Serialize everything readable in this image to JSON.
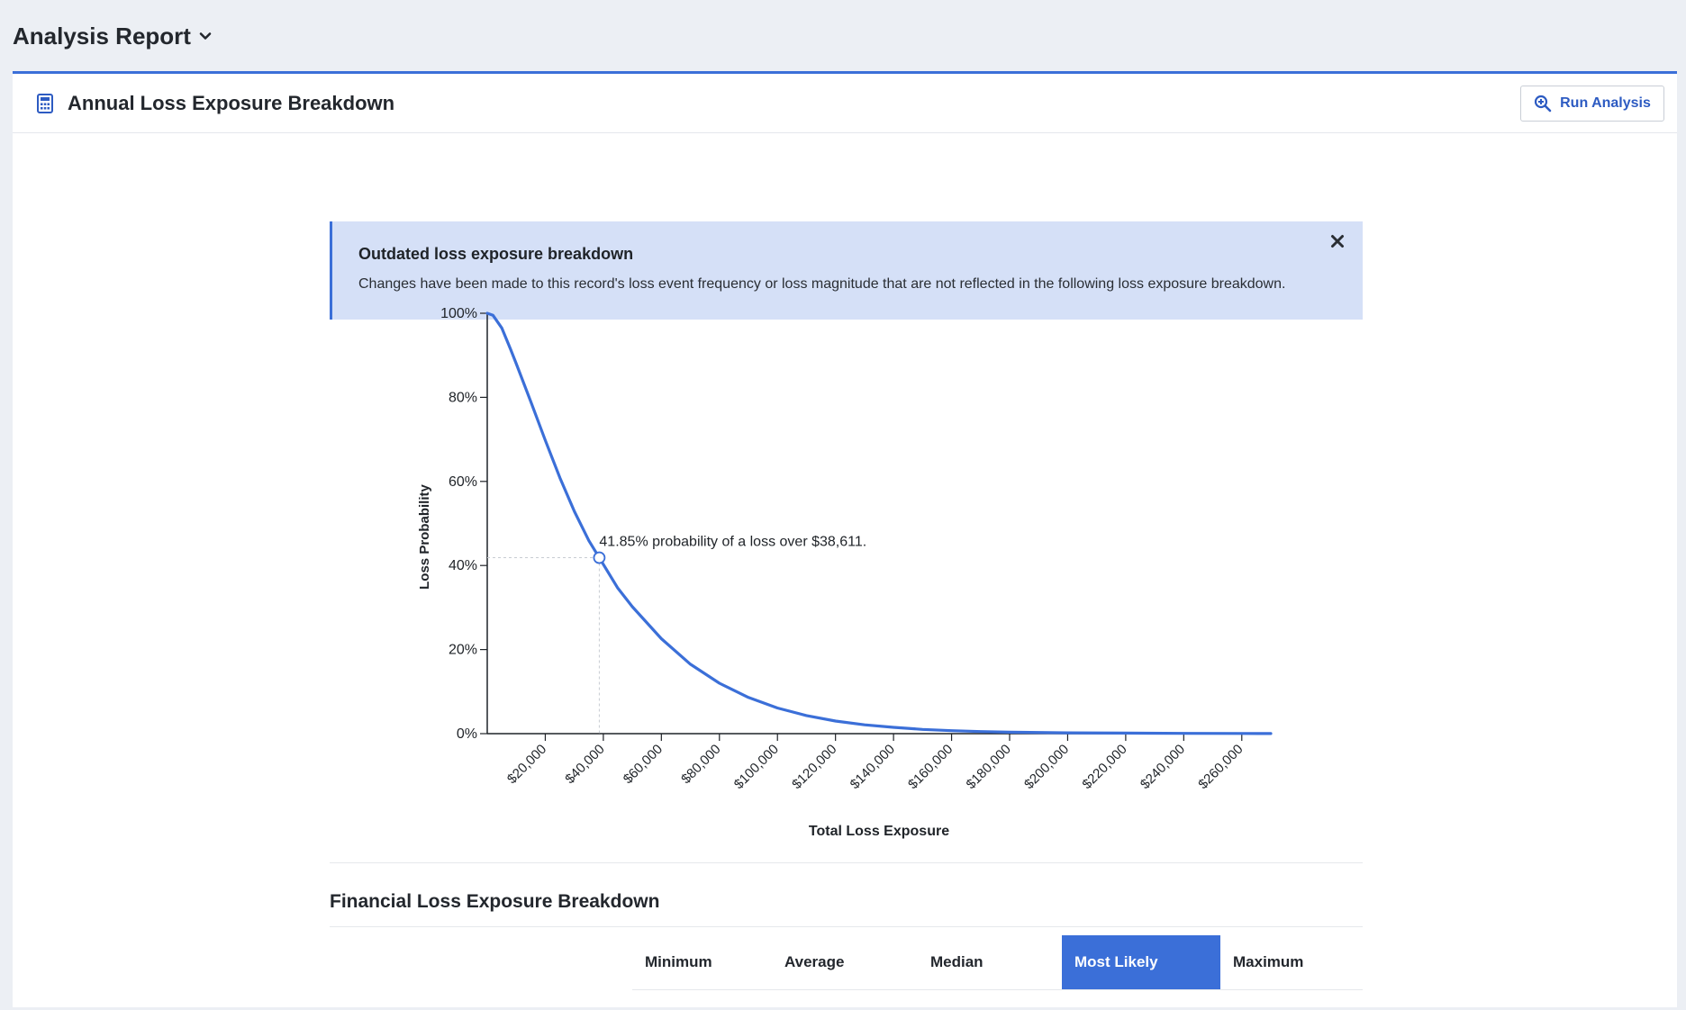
{
  "topbar": {
    "title": "Analysis Report"
  },
  "card": {
    "title": "Annual Loss Exposure Breakdown",
    "run_button_label": "Run Analysis"
  },
  "alert": {
    "title": "Outdated loss exposure breakdown",
    "text": "Changes have been made to this record's loss event frequency or loss magnitude that are not reflected in the following loss exposure breakdown."
  },
  "colors": {
    "accent": "#3b6fd8",
    "alert_bg": "#d5e0f7",
    "curve": "#3b6fd8"
  },
  "chart_data": {
    "type": "line",
    "xlabel": "Total Loss Exposure",
    "ylabel": "Loss Probability",
    "xlim": [
      0,
      270000
    ],
    "ylim": [
      0,
      100
    ],
    "x_ticks": [
      20000,
      40000,
      60000,
      80000,
      100000,
      120000,
      140000,
      160000,
      180000,
      200000,
      220000,
      240000,
      260000
    ],
    "x_tick_labels": [
      "$20,000",
      "$40,000",
      "$60,000",
      "$80,000",
      "$100,000",
      "$120,000",
      "$140,000",
      "$160,000",
      "$180,000",
      "$200,000",
      "$220,000",
      "$240,000",
      "$260,000"
    ],
    "y_ticks": [
      0,
      20,
      40,
      60,
      80,
      100
    ],
    "y_tick_labels": [
      "0%",
      "20%",
      "40%",
      "60%",
      "80%",
      "100%"
    ],
    "series": [
      {
        "x": [
          0,
          2000,
          5000,
          8000,
          10000,
          15000,
          20000,
          25000,
          30000,
          35000,
          38611,
          45000,
          50000,
          60000,
          70000,
          80000,
          90000,
          100000,
          110000,
          120000,
          130000,
          140000,
          150000,
          160000,
          170000,
          180000,
          200000,
          220000,
          240000,
          260000,
          270000
        ],
        "y": [
          100,
          99.5,
          96.5,
          91.5,
          88.0,
          79.0,
          69.8,
          60.9,
          52.9,
          45.9,
          41.85,
          34.6,
          30.2,
          22.6,
          16.5,
          12.0,
          8.6,
          6.1,
          4.3,
          3.0,
          2.1,
          1.5,
          1.0,
          0.7,
          0.5,
          0.35,
          0.2,
          0.12,
          0.07,
          0.04,
          0.03
        ]
      }
    ],
    "annotation": {
      "x": 38611,
      "y": 41.85,
      "text": "41.85% probability of a loss over $38,611."
    },
    "grid": false,
    "legend": "none"
  },
  "breakdown": {
    "title": "Financial Loss Exposure Breakdown",
    "tabs": [
      {
        "label": "Minimum",
        "active": false
      },
      {
        "label": "Average",
        "active": false
      },
      {
        "label": "Median",
        "active": false
      },
      {
        "label": "Most Likely",
        "active": true
      },
      {
        "label": "Maximum",
        "active": false
      }
    ]
  }
}
